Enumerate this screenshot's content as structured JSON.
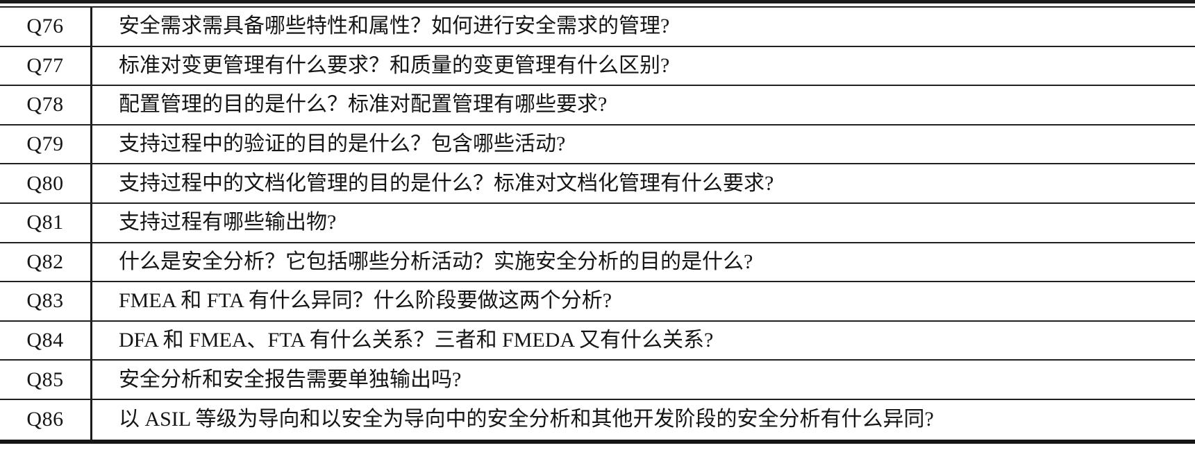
{
  "page": {
    "kind": "book-table-page",
    "description_visible": false
  },
  "colors": {
    "background": "#ffffff",
    "text": "#151515",
    "rule": "#1b1b1b"
  },
  "table": {
    "columns": [
      "question-id",
      "question-text"
    ],
    "rows": [
      {
        "id": "Q76",
        "question": "安全需求需具备哪些特性和属性？如何进行安全需求的管理?"
      },
      {
        "id": "Q77",
        "question": "标准对变更管理有什么要求？和质量的变更管理有什么区别?"
      },
      {
        "id": "Q78",
        "question": "配置管理的目的是什么？标准对配置管理有哪些要求?"
      },
      {
        "id": "Q79",
        "question": "支持过程中的验证的目的是什么？包含哪些活动?"
      },
      {
        "id": "Q80",
        "question": "支持过程中的文档化管理的目的是什么？标准对文档化管理有什么要求?"
      },
      {
        "id": "Q81",
        "question": "支持过程有哪些输出物?"
      },
      {
        "id": "Q82",
        "question": "什么是安全分析？它包括哪些分析活动？实施安全分析的目的是什么?"
      },
      {
        "id": "Q83",
        "question": "FMEA 和 FTA 有什么异同？什么阶段要做这两个分析?"
      },
      {
        "id": "Q84",
        "question": "DFA 和 FMEA、FTA 有什么关系？三者和 FMEDA 又有什么关系?"
      },
      {
        "id": "Q85",
        "question": "安全分析和安全报告需要单独输出吗?"
      },
      {
        "id": "Q86",
        "question": "以 ASIL 等级为导向和以安全为导向中的安全分析和其他开发阶段的安全分析有什么异同?"
      }
    ]
  }
}
